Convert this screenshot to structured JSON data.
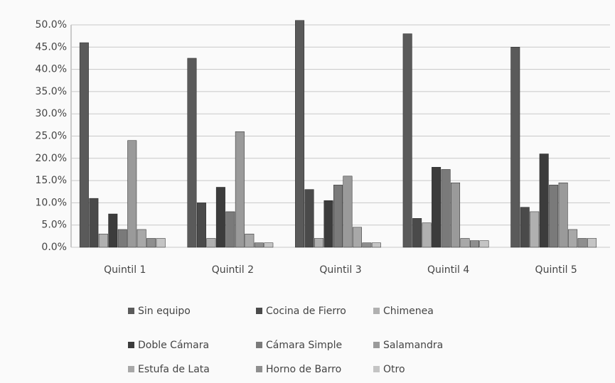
{
  "chart_data": {
    "type": "bar",
    "categories": [
      "Quintil 1",
      "Quintil 2",
      "Quintil 3",
      "Quintil 4",
      "Quintil 5"
    ],
    "series": [
      {
        "name": "Sin equipo",
        "color": "#5a5a5a",
        "values": [
          46,
          42.5,
          51,
          48,
          45
        ]
      },
      {
        "name": "Cocina de Fierro",
        "color": "#4a4a4a",
        "values": [
          11,
          10,
          13,
          6.5,
          9
        ]
      },
      {
        "name": "Chimenea",
        "color": "#b0b0b0",
        "values": [
          3,
          2,
          2,
          5.5,
          8
        ]
      },
      {
        "name": "Doble Cámara",
        "color": "#3c3c3c",
        "values": [
          7.5,
          13.5,
          10.5,
          18,
          21
        ]
      },
      {
        "name": "Cámara Simple",
        "color": "#7a7a7a",
        "values": [
          4,
          8,
          14,
          17.5,
          14
        ]
      },
      {
        "name": "Salamandra",
        "color": "#9a9a9a",
        "values": [
          24,
          26,
          16,
          14.5,
          14.5
        ]
      },
      {
        "name": "Estufa de Lata",
        "color": "#a8a8a8",
        "values": [
          4,
          3,
          4.5,
          2,
          4
        ]
      },
      {
        "name": "Horno de Barro",
        "color": "#8e8e8e",
        "values": [
          2,
          1,
          1,
          1.5,
          2
        ]
      },
      {
        "name": "Otro",
        "color": "#c4c4c4",
        "values": [
          2,
          1,
          1,
          1.5,
          2
        ]
      }
    ],
    "ylim": [
      0,
      50
    ],
    "yticks": [
      {
        "value": 0,
        "label": "0.0%"
      },
      {
        "value": 5,
        "label": "5.0%"
      },
      {
        "value": 10,
        "label": "10.0%"
      },
      {
        "value": 15,
        "label": "15.0%"
      },
      {
        "value": 20,
        "label": "20.0%"
      },
      {
        "value": 25,
        "label": "25.0%"
      },
      {
        "value": 30,
        "label": "30.0%"
      },
      {
        "value": 35,
        "label": "35.0%"
      },
      {
        "value": 40,
        "label": "40.0%"
      },
      {
        "value": 45,
        "label": "45.0%"
      },
      {
        "value": 50,
        "label": "50.0%"
      }
    ],
    "grid": true,
    "legend": "bottom"
  }
}
